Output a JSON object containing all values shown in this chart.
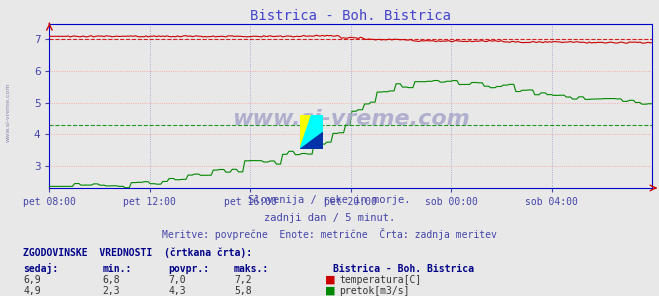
{
  "title": "Bistrica - Boh. Bistrica",
  "title_color": "#4444cc",
  "bg_color": "#e8e8e8",
  "plot_bg_color": "#e8e8e8",
  "grid_color_red": "#ffaaaa",
  "grid_color_blue": "#aaaacc",
  "text_color": "#4444aa",
  "axis_color": "#0000cc",
  "tick_color": "#4444aa",
  "ylim": [
    2.3,
    7.5
  ],
  "yticks": [
    3,
    4,
    5,
    6,
    7
  ],
  "xtick_labels": [
    "pet 08:00",
    "pet 12:00",
    "pet 16:00",
    "pet 20:00",
    "sob 00:00",
    "sob 04:00"
  ],
  "watermark": "www.si-vreme.com",
  "side_text": "www.si-vreme.com",
  "temp_color": "#cc0000",
  "flow_color": "#008800",
  "temp_avg": 7.0,
  "flow_avg": 4.3,
  "subtitle1": "Slovenija / reke in morje.",
  "subtitle2": "zadnji dan / 5 minut.",
  "subtitle3": "Meritve: povprečne  Enote: metrične  Črta: zadnja meritev",
  "legend_title": "Bistrica - Boh. Bistrica",
  "legend_temp_label": "temperatura[C]",
  "legend_flow_label": "pretok[m3/s]",
  "table_header": "ZGODOVINSKE  VREDNOSTI  (črtkana črta):",
  "table_cols": [
    "sedaj:",
    "min.:",
    "povpr.:",
    "maks.:"
  ],
  "table_temp": [
    "6,9",
    "6,8",
    "7,0",
    "7,2"
  ],
  "table_flow": [
    "4,9",
    "2,3",
    "4,3",
    "5,8"
  ],
  "n_points": 288
}
